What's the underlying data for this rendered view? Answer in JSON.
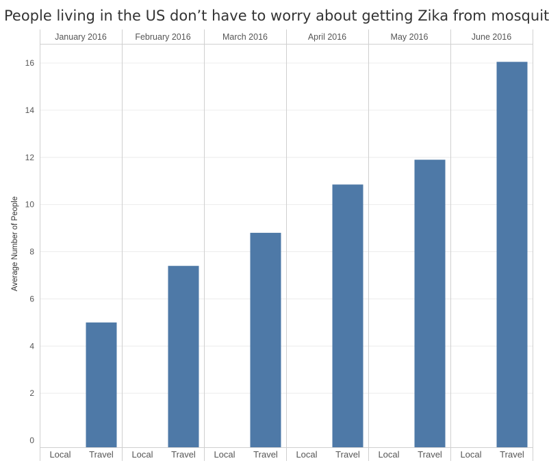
{
  "colors": {
    "bar": "#4e79a7",
    "gridline": "#ececec",
    "divider": "#cfcfcf",
    "text": "#555555"
  },
  "chart_data": {
    "type": "bar",
    "title": "People living in the US don’t have to worry about getting Zika from mosquitoes",
    "ylabel": "Average Number of People",
    "xlabel": "",
    "ylim": [
      0,
      16.8
    ],
    "yticks": [
      0,
      2,
      4,
      6,
      8,
      10,
      12,
      14,
      16
    ],
    "grid": true,
    "panels": [
      {
        "label": "January 2016",
        "categories": [
          "Local",
          "Travel"
        ],
        "values": [
          0,
          5.0
        ]
      },
      {
        "label": "February 2016",
        "categories": [
          "Local",
          "Travel"
        ],
        "values": [
          0,
          7.4
        ]
      },
      {
        "label": "March 2016",
        "categories": [
          "Local",
          "Travel"
        ],
        "values": [
          0,
          8.8
        ]
      },
      {
        "label": "April 2016",
        "categories": [
          "Local",
          "Travel"
        ],
        "values": [
          0,
          10.85
        ]
      },
      {
        "label": "May 2016",
        "categories": [
          "Local",
          "Travel"
        ],
        "values": [
          0,
          11.9
        ]
      },
      {
        "label": "June 2016",
        "categories": [
          "Local",
          "Travel"
        ],
        "values": [
          0,
          16.05
        ]
      }
    ]
  }
}
